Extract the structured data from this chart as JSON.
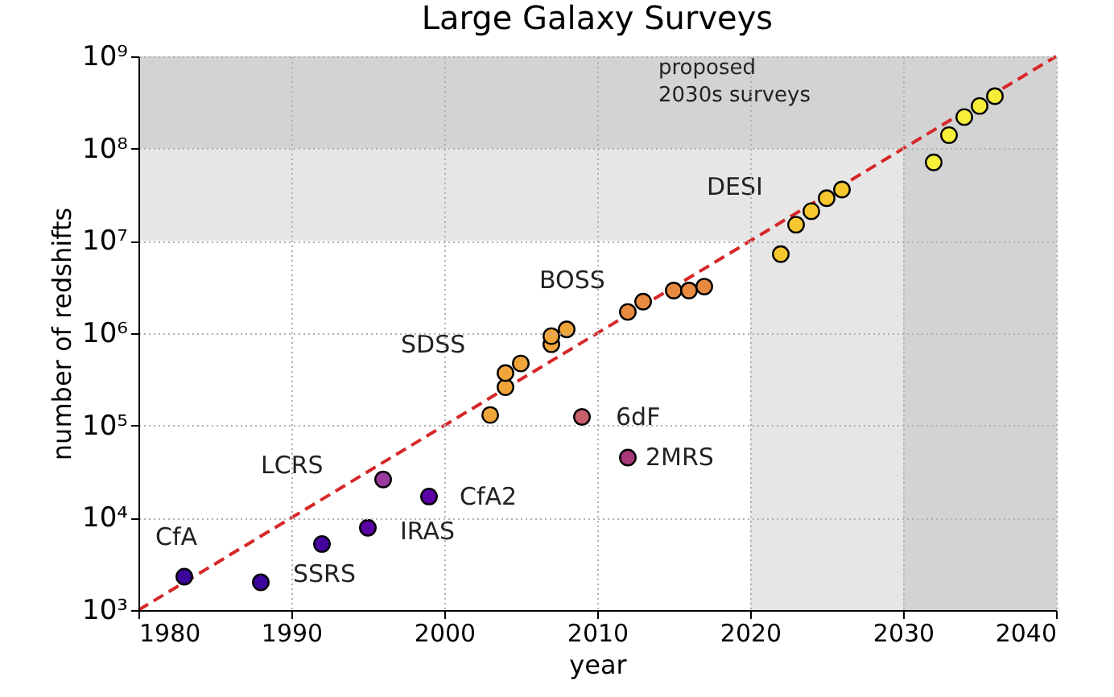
{
  "chart_data": {
    "type": "scatter",
    "title": "Large Galaxy Surveys",
    "xlabel": "year",
    "ylabel": "number of redshifts",
    "x": [
      1983,
      1988,
      1992,
      1995,
      1996,
      1999,
      2003,
      2004,
      2004,
      2005,
      2007,
      2007,
      2008,
      2009,
      2012,
      2012,
      2013,
      2015,
      2016,
      2017,
      2022,
      2023,
      2024,
      2025,
      2026,
      2032,
      2033,
      2034,
      2035,
      2036
    ],
    "series": [
      {
        "marker": "circle",
        "values": [
          2300,
          2000,
          5200,
          7800,
          26000,
          17000,
          130000,
          260000,
          370000,
          470000,
          760000,
          930000,
          1100000,
          124000,
          45000,
          1700000,
          2200000,
          2900000,
          2900000,
          3200000,
          7200000,
          15000000,
          21000000,
          29000000,
          36000000,
          71000000,
          140000000,
          220000000,
          290000000,
          370000000
        ],
        "colors": [
          "#3b049a",
          "#3b049a",
          "#46039f",
          "#5c01a6",
          "#9a3a9e",
          "#5c01a6",
          "#f0a53a",
          "#f0a53a",
          "#f0a53a",
          "#f0a53a",
          "#f0a53a",
          "#f0a53a",
          "#f0a53a",
          "#c8606a",
          "#a8387a",
          "#e88a40",
          "#e88a40",
          "#e88a40",
          "#e88a40",
          "#e88a40",
          "#f5c830",
          "#f5c830",
          "#f5c830",
          "#f5c830",
          "#f5c830",
          "#f6ee38",
          "#f6ee38",
          "#f6ee38",
          "#f6ee38",
          "#f6ee38"
        ]
      },
      {
        "type": "line",
        "x": [
          1980,
          2040
        ],
        "values": [
          1000,
          1000000000
        ],
        "color": "#d62728",
        "line_style": "dashed",
        "marker": "none"
      }
    ],
    "xlim": [
      1980,
      2040
    ],
    "xticks": [
      1980,
      1990,
      2000,
      2010,
      2020,
      2030,
      2040
    ],
    "ylim": [
      1000,
      1000000000
    ],
    "log": "y",
    "yticks": [
      {
        "value": 1000,
        "label": "10³"
      },
      {
        "value": 10000,
        "label": "10⁴"
      },
      {
        "value": 100000,
        "label": "10⁵"
      },
      {
        "value": 1000000,
        "label": "10⁶"
      },
      {
        "value": 10000000,
        "label": "10⁷"
      },
      {
        "value": 100000000,
        "label": "10⁸"
      },
      {
        "value": 1000000000,
        "label": "10⁹"
      }
    ],
    "bands": [
      {
        "axis": "x",
        "from": 2020,
        "to": 2040,
        "color": "#e6e6e6"
      },
      {
        "axis": "y",
        "from": 10000000,
        "to": 100000000,
        "color": "#e6e6e6"
      },
      {
        "axis": "y",
        "from": 100000000,
        "to": 1000000000,
        "color": "#d3d3d3",
        "label": "proposed\n2030s surveys"
      },
      {
        "axis": "x",
        "from": 2030,
        "to": 2040,
        "color": "#d3d3d3"
      }
    ],
    "annotations": [
      {
        "text": "CfA",
        "x": 1983,
        "y": 2300
      },
      {
        "text": "SSRS",
        "x": 1988,
        "y": 2000
      },
      {
        "text": "LCRS",
        "x": 1996,
        "y": 26000
      },
      {
        "text": "IRAS",
        "x": 1995,
        "y": 7800
      },
      {
        "text": "CfA2",
        "x": 1999,
        "y": 17000
      },
      {
        "text": "SDSS",
        "x": 2004,
        "y": 370000
      },
      {
        "text": "BOSS",
        "x": 2012,
        "y": 1700000
      },
      {
        "text": "6dF",
        "x": 2009,
        "y": 124000
      },
      {
        "text": "2MRS",
        "x": 2012,
        "y": 45000
      },
      {
        "text": "DESI",
        "x": 2022,
        "y": 7200000
      }
    ],
    "grid": true
  }
}
